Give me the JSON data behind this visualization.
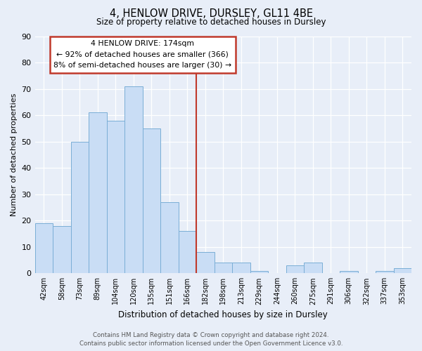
{
  "title": "4, HENLOW DRIVE, DURSLEY, GL11 4BE",
  "subtitle": "Size of property relative to detached houses in Dursley",
  "xlabel": "Distribution of detached houses by size in Dursley",
  "ylabel": "Number of detached properties",
  "bar_labels": [
    "42sqm",
    "58sqm",
    "73sqm",
    "89sqm",
    "104sqm",
    "120sqm",
    "135sqm",
    "151sqm",
    "166sqm",
    "182sqm",
    "198sqm",
    "213sqm",
    "229sqm",
    "244sqm",
    "260sqm",
    "275sqm",
    "291sqm",
    "306sqm",
    "322sqm",
    "337sqm",
    "353sqm"
  ],
  "bar_values": [
    19,
    18,
    50,
    61,
    58,
    71,
    55,
    27,
    16,
    8,
    4,
    4,
    1,
    0,
    3,
    4,
    0,
    1,
    0,
    1,
    2
  ],
  "bar_color": "#c9ddf5",
  "bar_edge_color": "#7aaed6",
  "vline_color": "#c0392b",
  "ylim": [
    0,
    90
  ],
  "yticks": [
    0,
    10,
    20,
    30,
    40,
    50,
    60,
    70,
    80,
    90
  ],
  "annotation_title": "4 HENLOW DRIVE: 174sqm",
  "annotation_line1": "← 92% of detached houses are smaller (366)",
  "annotation_line2": "8% of semi-detached houses are larger (30) →",
  "annotation_box_color": "#ffffff",
  "annotation_box_edge": "#c0392b",
  "footer_line1": "Contains HM Land Registry data © Crown copyright and database right 2024.",
  "footer_line2": "Contains public sector information licensed under the Open Government Licence v3.0.",
  "bg_color": "#e8eef8"
}
